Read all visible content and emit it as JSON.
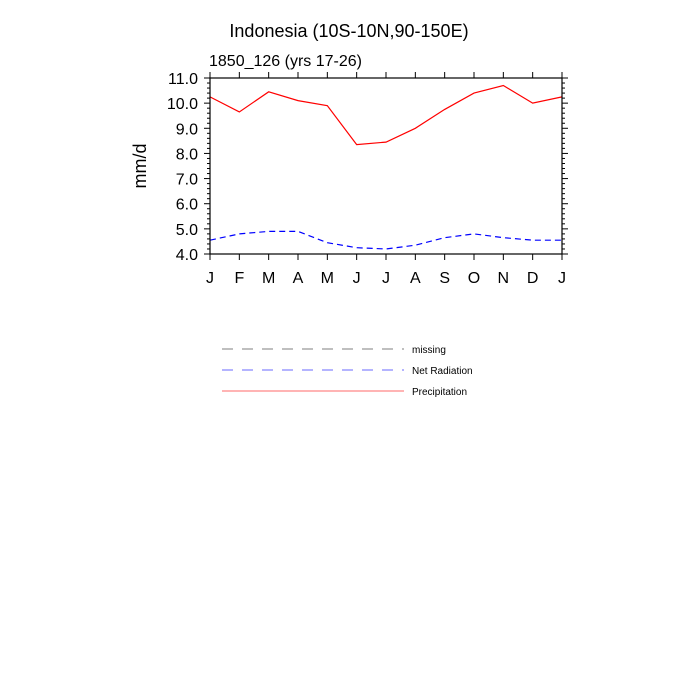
{
  "chart_data": {
    "type": "line",
    "title": "Indonesia (10S-10N,90-150E)",
    "subtitle": "1850_126 (yrs 17-26)",
    "xlabel": "",
    "ylabel": "mm/d",
    "categories": [
      "J",
      "F",
      "M",
      "A",
      "M",
      "J",
      "J",
      "A",
      "S",
      "O",
      "N",
      "D",
      "J"
    ],
    "ylim": [
      4.0,
      11.0
    ],
    "yticks": [
      "4.0",
      "5.0",
      "6.0",
      "7.0",
      "8.0",
      "9.0",
      "10.0",
      "11.0"
    ],
    "grid": false,
    "legend_placement": "bottom",
    "legend": [
      {
        "name": "missing",
        "color": "#999999",
        "dash": "dashed"
      },
      {
        "name": "Net Radiation",
        "color": "#8888ff",
        "dash": "dashed"
      },
      {
        "name": "Precipitation",
        "color": "#ff8888",
        "dash": "solid"
      }
    ],
    "series": [
      {
        "name": "Precipitation",
        "color": "#ff0000",
        "dash": "solid",
        "values": [
          10.25,
          9.65,
          10.45,
          10.1,
          9.9,
          8.35,
          8.45,
          9.0,
          9.75,
          10.4,
          10.7,
          10.0,
          10.25
        ]
      },
      {
        "name": "Net Radiation",
        "color": "#0000ff",
        "dash": "dashed",
        "values": [
          4.55,
          4.8,
          4.9,
          4.9,
          4.45,
          4.25,
          4.2,
          4.35,
          4.65,
          4.8,
          4.65,
          4.55,
          4.55
        ]
      }
    ]
  }
}
